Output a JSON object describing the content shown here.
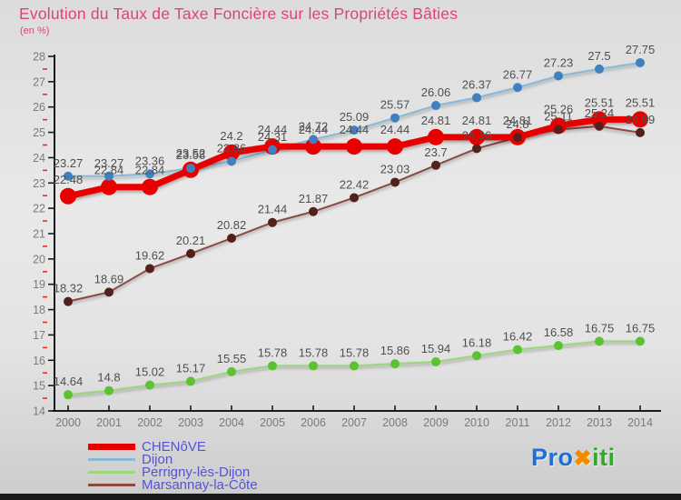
{
  "title": "Evolution du Taux de Taxe Foncière sur les Propriétés Bâties",
  "subtitle": "(en %)",
  "colors": {
    "title": "#dd4570",
    "legend_text": "#5353d8",
    "axis_line": "#1a1a1a",
    "tick_label": "#7a7a7a",
    "minor_tick": "#ff2020",
    "data_label": "#4f4f4f",
    "bottom_bar": "#1a1a1a"
  },
  "chart_data": {
    "type": "line",
    "title": "Evolution du Taux de Taxe Foncière sur les Propriétés Bâties",
    "subtitle": "(en %)",
    "x": [
      2000,
      2001,
      2002,
      2003,
      2004,
      2005,
      2006,
      2007,
      2008,
      2009,
      2010,
      2011,
      2012,
      2013,
      2014
    ],
    "xlabel": "",
    "ylabel": "en %",
    "ylim": [
      14,
      28
    ],
    "y_major_step": 1,
    "y_minor_step": 0.5,
    "grid": false,
    "legend_position": "bottom-left",
    "point_labels": true,
    "series": [
      {
        "name": "CHENôVE",
        "line_color": "#e80000",
        "point_color": "#e80000",
        "line_width": 7,
        "point_radius": 9,
        "values": [
          22.48,
          22.84,
          22.84,
          23.52,
          24.2,
          24.44,
          24.44,
          24.44,
          24.44,
          24.81,
          24.81,
          24.81,
          25.26,
          25.51,
          25.51
        ]
      },
      {
        "name": "Dijon",
        "line_color": "#88b8d8",
        "point_color": "#3f81c0",
        "line_width": 2,
        "point_radius": 5,
        "values": [
          23.27,
          23.27,
          23.36,
          23.58,
          23.86,
          24.31,
          24.72,
          25.09,
          25.57,
          26.06,
          26.37,
          26.77,
          27.23,
          27.5,
          27.75
        ]
      },
      {
        "name": "Perrigny-lès-Dijon",
        "line_color": "#98d87a",
        "point_color": "#5cc232",
        "line_width": 2,
        "point_radius": 5,
        "values": [
          14.64,
          14.8,
          15.02,
          15.17,
          15.55,
          15.78,
          15.78,
          15.78,
          15.86,
          15.94,
          16.18,
          16.42,
          16.58,
          16.75,
          16.75
        ]
      },
      {
        "name": "Marsannay-la-Côte",
        "line_color": "#8a4a42",
        "point_color": "#53201b",
        "line_width": 2,
        "point_radius": 5,
        "values": [
          18.32,
          18.69,
          19.62,
          20.21,
          20.82,
          21.44,
          21.87,
          22.42,
          23.03,
          23.7,
          24.36,
          24.8,
          25.11,
          25.24,
          24.99
        ]
      }
    ]
  },
  "logo": {
    "pro": "Pro",
    "x": "✖",
    "iti": "iti",
    "pro_color": "#1f6fd6",
    "x_color": "#f28a00",
    "iti_color": "#35a82c"
  }
}
